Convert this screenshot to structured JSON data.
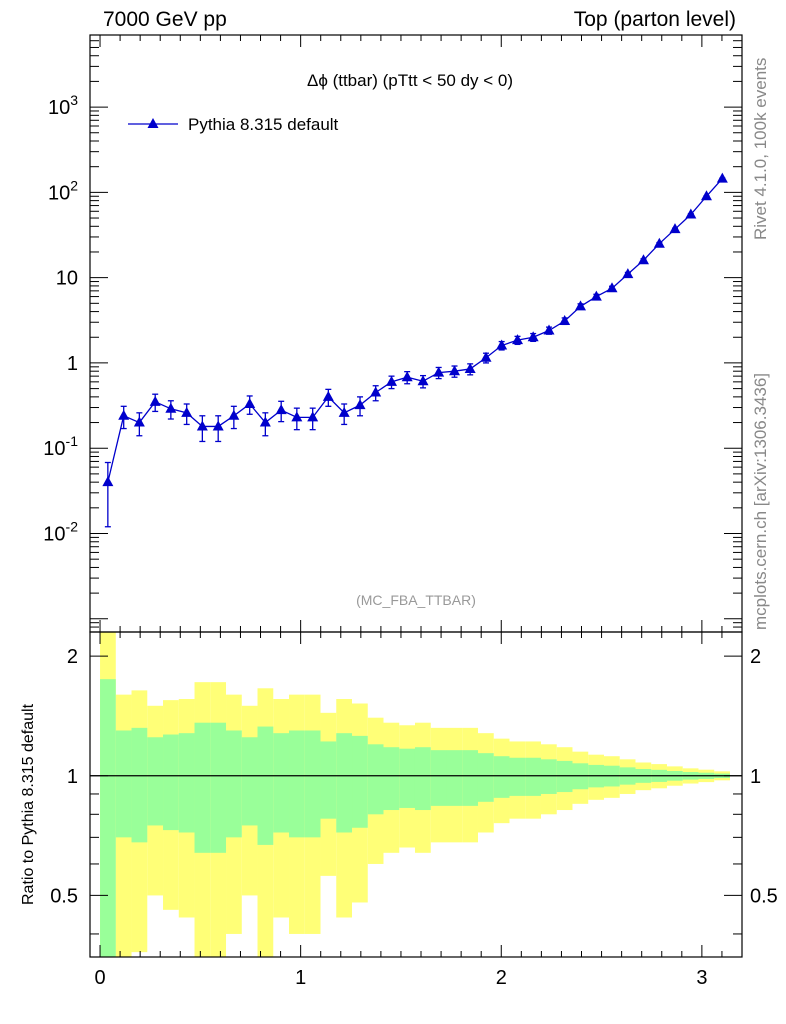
{
  "header": {
    "left": "7000 GeV pp",
    "right": "Top (parton level)"
  },
  "side_labels": {
    "rivet": "Rivet 4.1.0,  100k events",
    "mcplots": "mcplots.cern.ch [arXiv:1306.3436]"
  },
  "chart_data": [
    {
      "type": "line",
      "panel": "main",
      "title": "Δϕ (ttbar) (pTtt < 50 dy < 0)",
      "watermark": "(MC_FBA_TTBAR)",
      "xlabel": "",
      "ylabel": "",
      "yscale": "log",
      "xlim": [
        -0.05,
        3.2
      ],
      "ylim": [
        0.0007,
        7000
      ],
      "ytick_labels": [
        "10^-2",
        "10^-1",
        "1",
        "10",
        "10^2",
        "10^3"
      ],
      "legend": {
        "position": "top-left",
        "entries": [
          "Pythia 8.315 default"
        ]
      },
      "series": [
        {
          "name": "Pythia 8.315 default",
          "color": "#0000cc",
          "marker": "triangle",
          "x": [
            0.039,
            0.118,
            0.196,
            0.275,
            0.353,
            0.432,
            0.51,
            0.589,
            0.667,
            0.746,
            0.824,
            0.903,
            0.981,
            1.06,
            1.138,
            1.217,
            1.296,
            1.374,
            1.453,
            1.531,
            1.61,
            1.688,
            1.767,
            1.845,
            1.924,
            2.002,
            2.081,
            2.159,
            2.238,
            2.316,
            2.395,
            2.474,
            2.552,
            2.631,
            2.709,
            2.788,
            2.866,
            2.945,
            3.023,
            3.102
          ],
          "y": [
            0.04,
            0.24,
            0.2,
            0.35,
            0.29,
            0.26,
            0.18,
            0.18,
            0.24,
            0.33,
            0.2,
            0.28,
            0.23,
            0.23,
            0.4,
            0.26,
            0.32,
            0.45,
            0.6,
            0.68,
            0.61,
            0.77,
            0.8,
            0.85,
            1.15,
            1.6,
            1.85,
            2.0,
            2.4,
            3.1,
            4.6,
            6.0,
            7.5,
            11.0,
            16.0,
            25.0,
            37.0,
            55.0,
            90.0,
            145.0
          ],
          "yerr": [
            0.028,
            0.07,
            0.06,
            0.08,
            0.07,
            0.07,
            0.06,
            0.06,
            0.07,
            0.08,
            0.06,
            0.075,
            0.065,
            0.065,
            0.09,
            0.07,
            0.08,
            0.09,
            0.1,
            0.11,
            0.1,
            0.115,
            0.12,
            0.125,
            0.15,
            0.18,
            0.2,
            0.21,
            0.23,
            0.27,
            0.33,
            0.38,
            0.43,
            0.52,
            0.63,
            0.78,
            0.95,
            1.15,
            1.5,
            1.9
          ]
        }
      ]
    },
    {
      "type": "area",
      "panel": "ratio",
      "title": "",
      "xlabel": "",
      "ylabel": "Ratio to Pythia 8.315 default",
      "yscale": "log",
      "xlim": [
        -0.05,
        3.2
      ],
      "ylim": [
        0.35,
        2.3
      ],
      "xtick_labels": [
        "0",
        "1",
        "2",
        "3"
      ],
      "ytick_labels": [
        "0.5",
        "1",
        "2"
      ],
      "reference_line": 1,
      "x_edges": [
        0.0,
        0.0785,
        0.157,
        0.2355,
        0.314,
        0.3925,
        0.471,
        0.5495,
        0.628,
        0.7065,
        0.785,
        0.8635,
        0.942,
        1.0205,
        1.099,
        1.1775,
        1.256,
        1.3345,
        1.413,
        1.4915,
        1.57,
        1.6485,
        1.727,
        1.8055,
        1.884,
        1.9625,
        2.041,
        2.1195,
        2.198,
        2.2765,
        2.355,
        2.4335,
        2.512,
        2.5905,
        2.669,
        2.7475,
        2.826,
        2.9045,
        2.983,
        3.0615,
        3.14
      ],
      "bands": [
        {
          "name": "stat uncertainty",
          "color": "#99ff99",
          "upper": [
            1.75,
            1.3,
            1.32,
            1.25,
            1.27,
            1.28,
            1.36,
            1.36,
            1.3,
            1.25,
            1.33,
            1.28,
            1.3,
            1.3,
            1.22,
            1.28,
            1.26,
            1.2,
            1.18,
            1.17,
            1.18,
            1.16,
            1.16,
            1.16,
            1.14,
            1.12,
            1.11,
            1.11,
            1.1,
            1.09,
            1.075,
            1.065,
            1.06,
            1.05,
            1.04,
            1.035,
            1.028,
            1.022,
            1.018,
            1.013
          ],
          "lower": [
            0.25,
            0.7,
            0.68,
            0.75,
            0.73,
            0.72,
            0.64,
            0.64,
            0.7,
            0.75,
            0.67,
            0.72,
            0.7,
            0.7,
            0.78,
            0.72,
            0.74,
            0.8,
            0.82,
            0.83,
            0.82,
            0.84,
            0.84,
            0.84,
            0.86,
            0.88,
            0.89,
            0.89,
            0.9,
            0.91,
            0.925,
            0.935,
            0.94,
            0.95,
            0.96,
            0.965,
            0.972,
            0.978,
            0.982,
            0.987
          ]
        },
        {
          "name": "total uncertainty",
          "color": "#ffff77",
          "upper": [
            2.5,
            1.6,
            1.64,
            1.5,
            1.55,
            1.56,
            1.72,
            1.72,
            1.6,
            1.5,
            1.66,
            1.56,
            1.6,
            1.6,
            1.44,
            1.56,
            1.52,
            1.4,
            1.36,
            1.34,
            1.36,
            1.32,
            1.32,
            1.32,
            1.28,
            1.24,
            1.22,
            1.22,
            1.2,
            1.18,
            1.15,
            1.13,
            1.12,
            1.1,
            1.08,
            1.07,
            1.056,
            1.044,
            1.036,
            1.026
          ],
          "lower": [
            0.1,
            0.3,
            0.36,
            0.5,
            0.46,
            0.44,
            0.28,
            0.28,
            0.4,
            0.5,
            0.34,
            0.44,
            0.4,
            0.4,
            0.56,
            0.44,
            0.48,
            0.6,
            0.64,
            0.66,
            0.64,
            0.68,
            0.68,
            0.68,
            0.72,
            0.76,
            0.78,
            0.78,
            0.8,
            0.82,
            0.85,
            0.87,
            0.88,
            0.9,
            0.92,
            0.93,
            0.944,
            0.956,
            0.964,
            0.974
          ]
        }
      ]
    }
  ]
}
